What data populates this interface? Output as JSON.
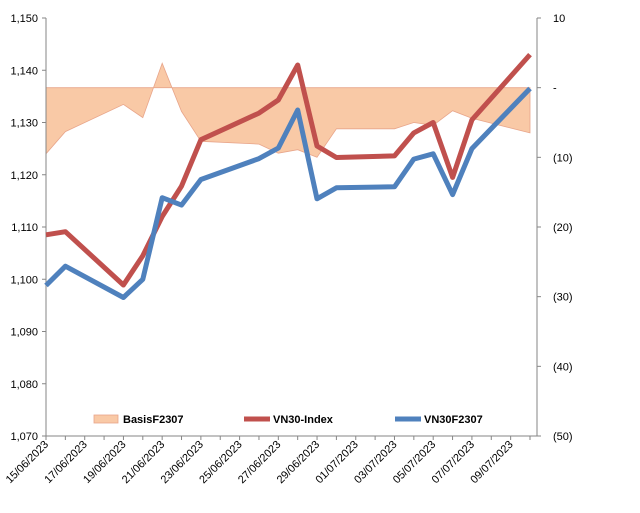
{
  "chart_data": {
    "type": "line",
    "title": "",
    "x": [
      "15/06/2023",
      "16/06/2023",
      "19/06/2023",
      "20/06/2023",
      "21/06/2023",
      "22/06/2023",
      "23/06/2023",
      "26/06/2023",
      "27/06/2023",
      "28/06/2023",
      "29/06/2023",
      "30/06/2023",
      "03/07/2023",
      "04/07/2023",
      "05/07/2023",
      "06/07/2023",
      "07/07/2023",
      "10/07/2023"
    ],
    "x_tick_labels": [
      "15/06/2023",
      "17/06/2023",
      "19/06/2023",
      "21/06/2023",
      "23/06/2023",
      "25/06/2023",
      "27/06/2023",
      "29/06/2023",
      "01/07/2023",
      "03/07/2023",
      "05/07/2023",
      "07/07/2023",
      "09/07/2023"
    ],
    "y_left": {
      "ylim": [
        1070,
        1150
      ],
      "ticks": [
        "1,070",
        "1,080",
        "1,090",
        "1,100",
        "1,110",
        "1,120",
        "1,130",
        "1,140",
        "1,150"
      ]
    },
    "y_right": {
      "ylim": [
        -50,
        10
      ],
      "ticks": [
        "(50)",
        "(40)",
        "(30)",
        "(20)",
        "(10)",
        "-",
        "10"
      ]
    },
    "series": [
      {
        "name": "BasisF2307",
        "kind": "area",
        "axis": "right",
        "color": "#F9C9A6",
        "values": [
          -9.5,
          -6.3,
          -2.4,
          -4.3,
          3.5,
          -3.4,
          -7.7,
          -8.1,
          -9.4,
          -8.9,
          -10.0,
          -5.9,
          -5.9,
          -5.0,
          -5.4,
          -3.3,
          -4.4,
          -6.5
        ]
      },
      {
        "name": "VN30-Index",
        "kind": "line",
        "axis": "left",
        "color": "#C0504D",
        "values": [
          1108.5,
          1109.1,
          1098.9,
          1104.5,
          1112.0,
          1117.8,
          1126.7,
          1131.8,
          1134.3,
          1141.0,
          1125.5,
          1123.3,
          1123.6,
          1128.0,
          1130.0,
          1119.5,
          1130.5,
          1143.0
        ]
      },
      {
        "name": "VN30F2307",
        "kind": "line",
        "axis": "left",
        "color": "#4F81BD",
        "values": [
          1098.8,
          1102.5,
          1096.5,
          1100.0,
          1115.6,
          1114.2,
          1119.1,
          1123.1,
          1125.1,
          1132.4,
          1115.4,
          1117.5,
          1117.7,
          1123.0,
          1124.0,
          1116.2,
          1125.0,
          1136.5
        ]
      }
    ],
    "legend": {
      "position": "bottom-inside"
    },
    "grid": false
  }
}
